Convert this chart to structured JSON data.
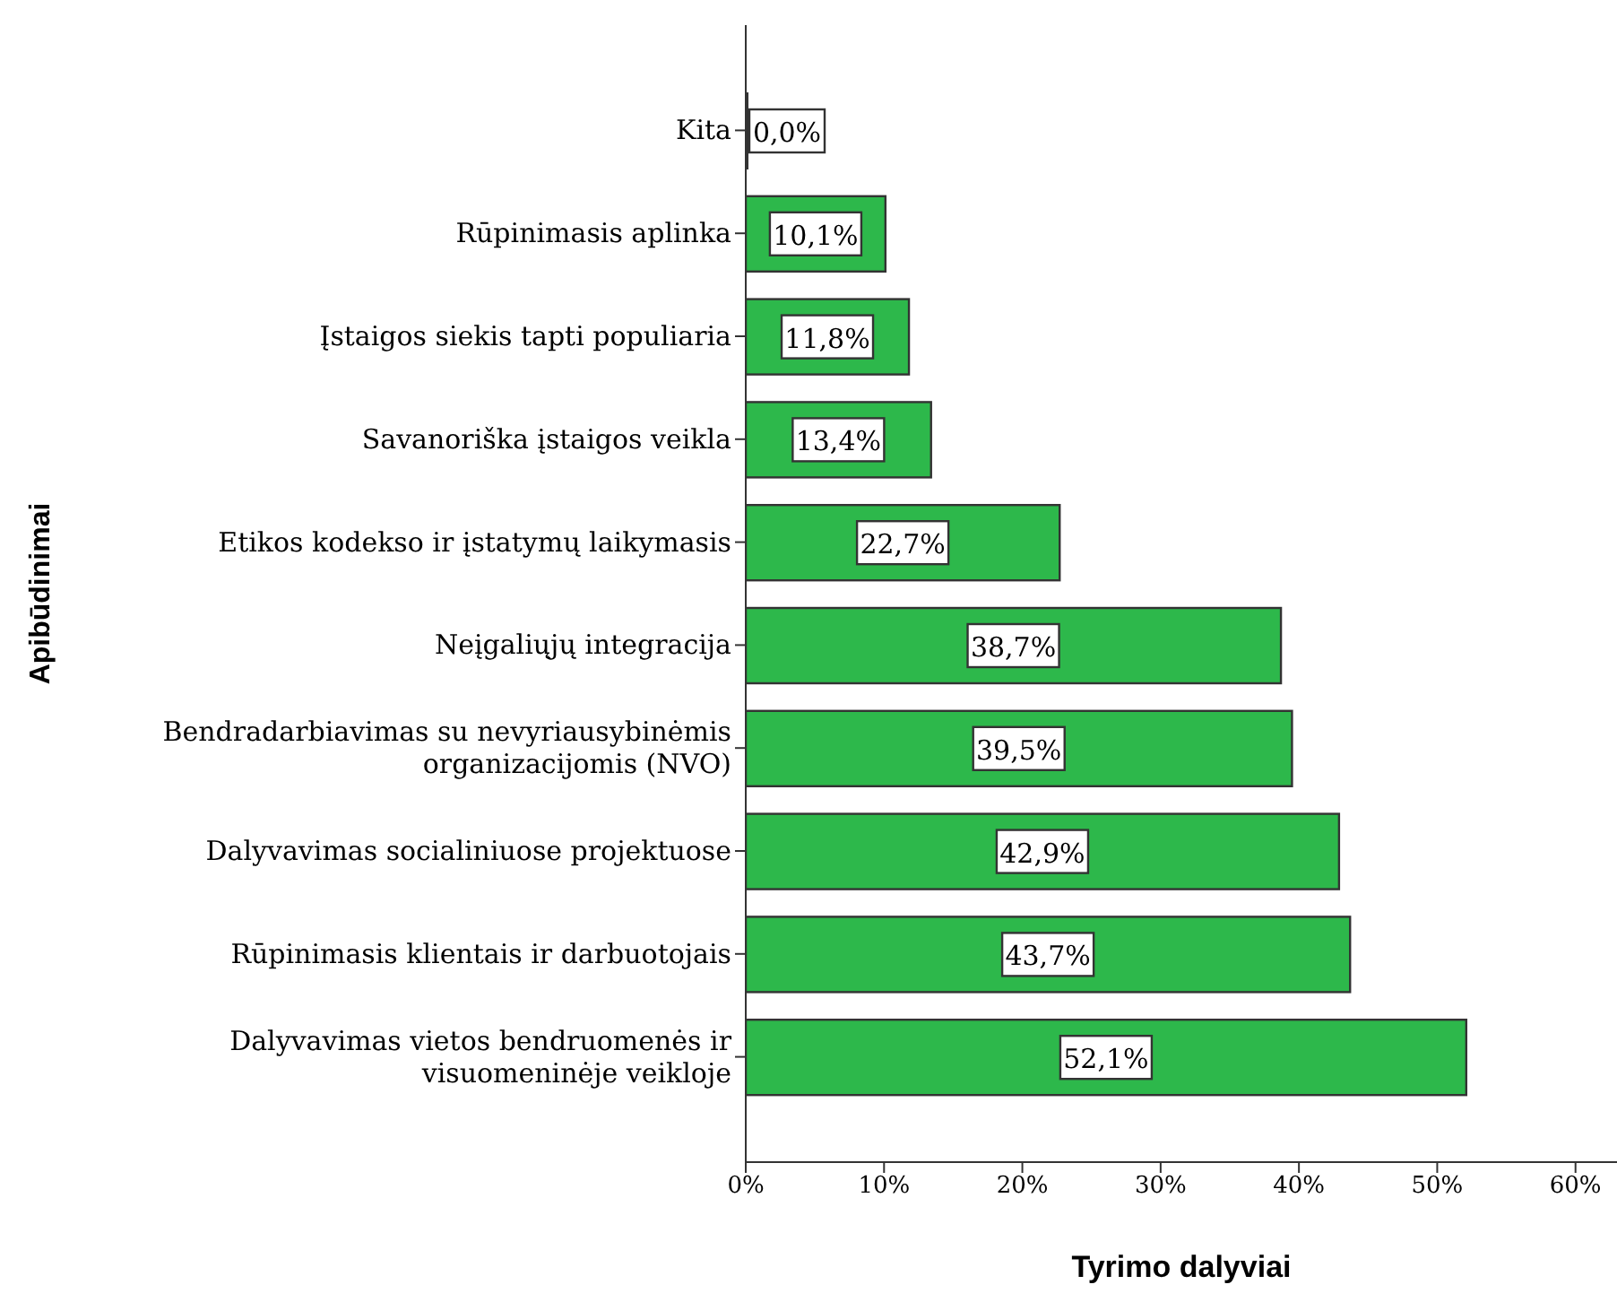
{
  "chart_data": {
    "type": "bar",
    "orientation": "horizontal",
    "xlabel": "Tyrimo dalyviai",
    "ylabel": "Apibūdinimai",
    "categories": [
      "Kita",
      "Rūpinimasis aplinka",
      "Įstaigos siekis tapti populiaria",
      "Savanoriška įstaigos veikla",
      "Etikos kodekso ir įstatymų laikymasis",
      "Neįgaliųjų integracija",
      "Bendradarbiavimas su nevyriausybinėmis\norganizacijomis (NVO)",
      "Dalyvavimas socialiniuose projektuose",
      "Rūpinimasis klientais ir darbuotojais",
      "Dalyvavimas vietos bendruomenės ir\nvisuomeninėje veikloje"
    ],
    "values": [
      0.0,
      10.1,
      11.8,
      13.4,
      22.7,
      38.7,
      39.5,
      42.9,
      43.7,
      52.1
    ],
    "value_labels": [
      "0,0%",
      "10,1%",
      "11,8%",
      "13,4%",
      "22,7%",
      "38,7%",
      "39,5%",
      "42,9%",
      "43,7%",
      "52,1%"
    ],
    "color": "#2db84b",
    "xlim": [
      0,
      63
    ],
    "xticks": [
      {
        "value": 0,
        "label": "0%"
      },
      {
        "value": 10,
        "label": "10%"
      },
      {
        "value": 20,
        "label": "20%"
      },
      {
        "value": 30,
        "label": "30%"
      },
      {
        "value": 40,
        "label": "40%"
      },
      {
        "value": 50,
        "label": "50%"
      },
      {
        "value": 60,
        "label": "60%"
      }
    ],
    "grid": false,
    "legend": false
  }
}
